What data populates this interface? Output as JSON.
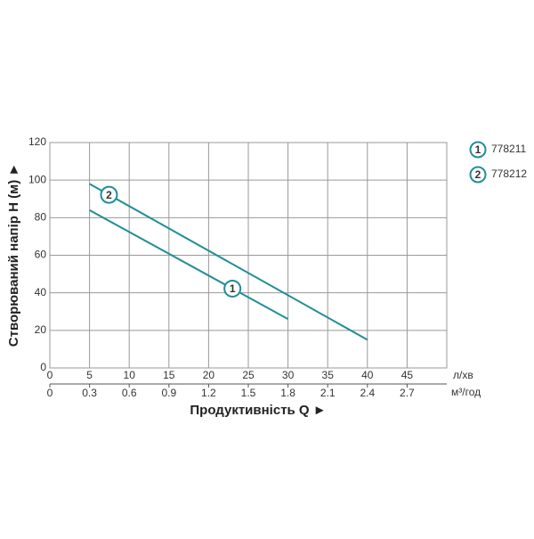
{
  "chart_data": {
    "type": "line",
    "title": "Продуктивність  Q ►",
    "y_label": "Створюваний напір H (м) ►",
    "x_unit": "л/хв",
    "x2_unit": "м³/год",
    "xlim": [
      0,
      50
    ],
    "xticks": [
      0,
      5,
      10,
      15,
      20,
      25,
      30,
      35,
      40,
      45
    ],
    "x2lim": [
      0,
      3
    ],
    "x2ticks": [
      0,
      0.3,
      0.6,
      0.9,
      1.2,
      1.5,
      1.8,
      2.1,
      2.4,
      2.7
    ],
    "ylim": [
      0,
      120
    ],
    "yticks": [
      0,
      20,
      40,
      60,
      80,
      100,
      120
    ],
    "grid": true,
    "series": [
      {
        "name": "778211",
        "marker": "1",
        "color": "#1f8f96",
        "x": [
          5,
          30
        ],
        "values": [
          84,
          26
        ]
      },
      {
        "name": "778212",
        "marker": "2",
        "color": "#1f8f96",
        "x": [
          5,
          40
        ],
        "values": [
          98,
          15
        ]
      }
    ]
  }
}
